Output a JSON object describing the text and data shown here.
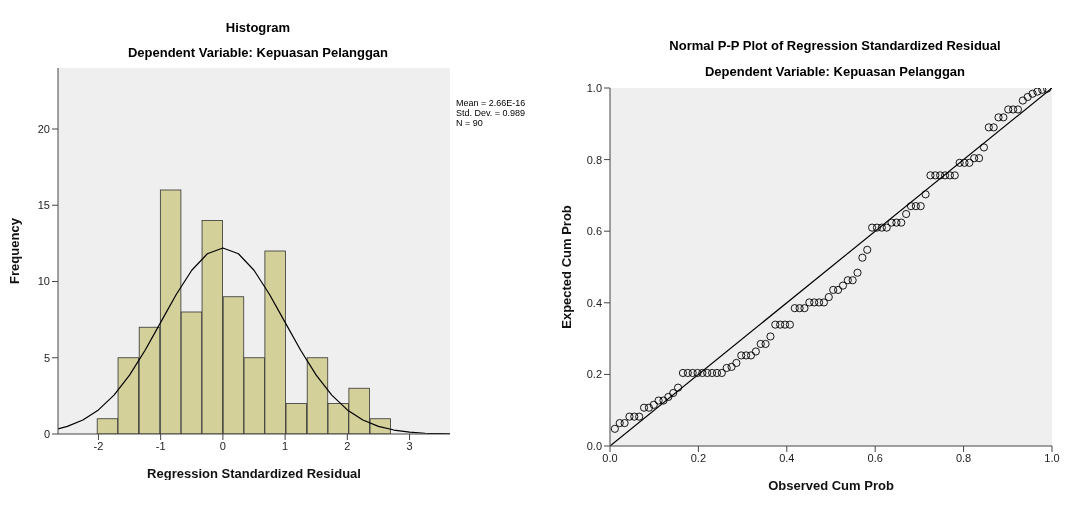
{
  "chart_data": [
    {
      "type": "histogram",
      "title": "Histogram",
      "subtitle": "Dependent Variable: Kepuasan Pelanggan",
      "xlabel": "Regression Standardized Residual",
      "ylabel": "Frequency",
      "bins": [
        -2.02,
        -1.69,
        -1.35,
        -1.01,
        -0.67,
        -0.34,
        0,
        0.34,
        0.67,
        1.01,
        1.35,
        1.69,
        2.02,
        2.36,
        2.7
      ],
      "values": [
        1,
        5,
        7,
        16,
        8,
        14,
        9,
        5,
        12,
        2,
        5,
        2,
        3,
        1
      ],
      "color": "#d4d09a",
      "series": [
        {
          "type": "line",
          "color": "#000000",
          "x": [
            -2.65,
            -2.5,
            -2.25,
            -2,
            -1.75,
            -1.5,
            -1.25,
            -1,
            -0.75,
            -0.5,
            -0.25,
            0,
            0.25,
            0.5,
            0.75,
            1,
            1.25,
            1.5,
            1.75,
            2,
            2.25,
            2.5,
            2.75,
            3,
            3.25,
            3.5,
            3.65
          ],
          "values": [
            0.34,
            0.5,
            0.92,
            1.58,
            2.55,
            3.86,
            5.49,
            7.32,
            9.15,
            10.74,
            11.82,
            12.2,
            11.82,
            10.74,
            9.15,
            7.32,
            5.49,
            3.86,
            2.55,
            1.58,
            0.92,
            0.5,
            0.26,
            0.12,
            0.05,
            0.02,
            0.01
          ]
        }
      ],
      "xlim": [
        -2.65,
        3.65
      ],
      "xticks": [
        -2,
        -1,
        0,
        1,
        2,
        3
      ],
      "ylim": [
        0,
        24
      ],
      "yticks": [
        0,
        5,
        10,
        15,
        20
      ],
      "annotations": [
        "Mean = 2.66E-16",
        "Std. Dev. = 0.989",
        "N = 90"
      ]
    },
    {
      "type": "scatter",
      "title": "Normal P-P Plot of Regression Standardized Residual",
      "subtitle": "Dependent Variable: Kepuasan Pelanggan",
      "xlabel": "Observed Cum Prob",
      "ylabel": "Expected Cum Prob",
      "series": [
        {
          "type": "scatter",
          "color": "#000000",
          "marker": "circle",
          "x": [
            0.011,
            0.022,
            0.033,
            0.044,
            0.055,
            0.066,
            0.077,
            0.088,
            0.099,
            0.11,
            0.121,
            0.132,
            0.143,
            0.154,
            0.165,
            0.176,
            0.187,
            0.198,
            0.209,
            0.22,
            0.231,
            0.242,
            0.253,
            0.264,
            0.275,
            0.286,
            0.297,
            0.308,
            0.319,
            0.33,
            0.341,
            0.352,
            0.363,
            0.374,
            0.385,
            0.396,
            0.407,
            0.418,
            0.429,
            0.44,
            0.451,
            0.462,
            0.473,
            0.484,
            0.495,
            0.505,
            0.516,
            0.527,
            0.538,
            0.549,
            0.56,
            0.571,
            0.582,
            0.593,
            0.604,
            0.615,
            0.626,
            0.637,
            0.648,
            0.659,
            0.67,
            0.681,
            0.692,
            0.703,
            0.714,
            0.725,
            0.736,
            0.747,
            0.758,
            0.769,
            0.78,
            0.791,
            0.802,
            0.813,
            0.824,
            0.835,
            0.846,
            0.857,
            0.868,
            0.879,
            0.89,
            0.901,
            0.912,
            0.923,
            0.934,
            0.945,
            0.956,
            0.967,
            0.978,
            0.989
          ],
          "values": [
            0.048,
            0.064,
            0.064,
            0.082,
            0.082,
            0.082,
            0.107,
            0.107,
            0.115,
            0.127,
            0.127,
            0.137,
            0.148,
            0.163,
            0.204,
            0.204,
            0.204,
            0.204,
            0.204,
            0.204,
            0.204,
            0.204,
            0.204,
            0.218,
            0.221,
            0.232,
            0.253,
            0.253,
            0.253,
            0.264,
            0.285,
            0.285,
            0.306,
            0.339,
            0.339,
            0.339,
            0.339,
            0.385,
            0.385,
            0.385,
            0.401,
            0.401,
            0.401,
            0.401,
            0.416,
            0.436,
            0.436,
            0.448,
            0.463,
            0.463,
            0.484,
            0.526,
            0.548,
            0.61,
            0.61,
            0.61,
            0.61,
            0.624,
            0.624,
            0.624,
            0.648,
            0.67,
            0.67,
            0.67,
            0.703,
            0.756,
            0.756,
            0.756,
            0.756,
            0.756,
            0.756,
            0.791,
            0.791,
            0.791,
            0.804,
            0.804,
            0.834,
            0.89,
            0.89,
            0.918,
            0.918,
            0.94,
            0.94,
            0.94,
            0.965,
            0.975,
            0.984,
            0.99,
            0.995,
            0.998
          ]
        },
        {
          "type": "line",
          "color": "#000000",
          "marker": "none",
          "x": [
            0,
            1
          ],
          "values": [
            0,
            1
          ]
        }
      ],
      "xlim": [
        0,
        1
      ],
      "xticks": [
        {
          "value": 0,
          "label": "0.0"
        },
        0.2,
        0.4,
        0.6,
        0.8,
        {
          "value": 1,
          "label": "1.0"
        }
      ],
      "ylim": [
        0,
        1
      ],
      "yticks": [
        {
          "value": 0,
          "label": "0.0"
        },
        0.2,
        0.4,
        0.6,
        0.8,
        {
          "value": 1,
          "label": "1.0"
        }
      ]
    }
  ]
}
